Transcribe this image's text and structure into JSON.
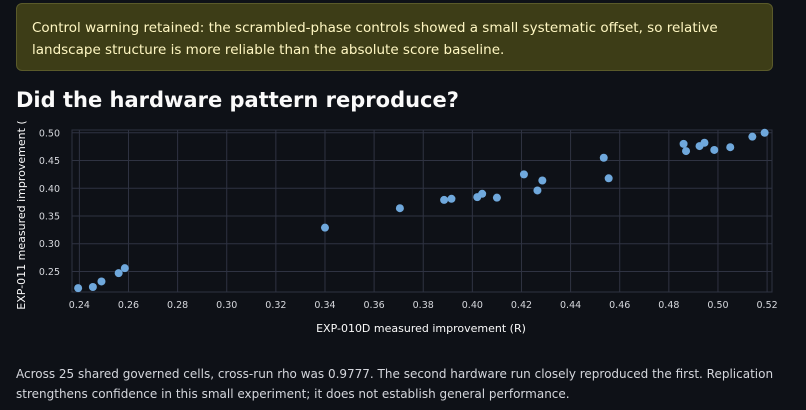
{
  "alert": {
    "text": "Control warning retained: the scrambled-phase controls showed a small systematic offset, so relative landscape structure is more reliable than the absolute score baseline."
  },
  "heading": "Did the hardware pattern reproduce?",
  "caption": "Across 25 shared governed cells, cross-run rho was 0.9777. The second hardware run closely reproduced the first. Replication strengthens confidence in this small experiment; it does not establish general performance.",
  "colors": {
    "point": "#6fa8dc",
    "grid": "#2f3342",
    "tick_text": "#d5d7dc",
    "alert_bg": "#3d3d17"
  },
  "chart_data": {
    "type": "scatter",
    "xlabel": "EXP-010D measured improvement (R)",
    "ylabel": "EXP-011 measured improvement (",
    "xlim": [
      0.237,
      0.522
    ],
    "ylim": [
      0.213,
      0.505
    ],
    "x_ticks": [
      "0.24",
      "0.26",
      "0.28",
      "0.30",
      "0.32",
      "0.34",
      "0.36",
      "0.38",
      "0.40",
      "0.42",
      "0.44",
      "0.46",
      "0.48",
      "0.50",
      "0.52"
    ],
    "y_ticks": [
      "0.25",
      "0.30",
      "0.35",
      "0.40",
      "0.45",
      "0.50"
    ],
    "grid": true,
    "points": [
      {
        "x": 0.2395,
        "y": 0.22
      },
      {
        "x": 0.2455,
        "y": 0.222
      },
      {
        "x": 0.249,
        "y": 0.232
      },
      {
        "x": 0.256,
        "y": 0.247
      },
      {
        "x": 0.2585,
        "y": 0.256
      },
      {
        "x": 0.34,
        "y": 0.329
      },
      {
        "x": 0.3705,
        "y": 0.364
      },
      {
        "x": 0.3885,
        "y": 0.379
      },
      {
        "x": 0.3915,
        "y": 0.381
      },
      {
        "x": 0.402,
        "y": 0.384
      },
      {
        "x": 0.404,
        "y": 0.39
      },
      {
        "x": 0.41,
        "y": 0.383
      },
      {
        "x": 0.421,
        "y": 0.425
      },
      {
        "x": 0.4265,
        "y": 0.396
      },
      {
        "x": 0.4285,
        "y": 0.414
      },
      {
        "x": 0.4535,
        "y": 0.455
      },
      {
        "x": 0.4555,
        "y": 0.418
      },
      {
        "x": 0.486,
        "y": 0.48
      },
      {
        "x": 0.487,
        "y": 0.467
      },
      {
        "x": 0.4925,
        "y": 0.476
      },
      {
        "x": 0.4945,
        "y": 0.482
      },
      {
        "x": 0.4985,
        "y": 0.469
      },
      {
        "x": 0.505,
        "y": 0.474
      },
      {
        "x": 0.514,
        "y": 0.493
      },
      {
        "x": 0.519,
        "y": 0.5
      }
    ]
  }
}
